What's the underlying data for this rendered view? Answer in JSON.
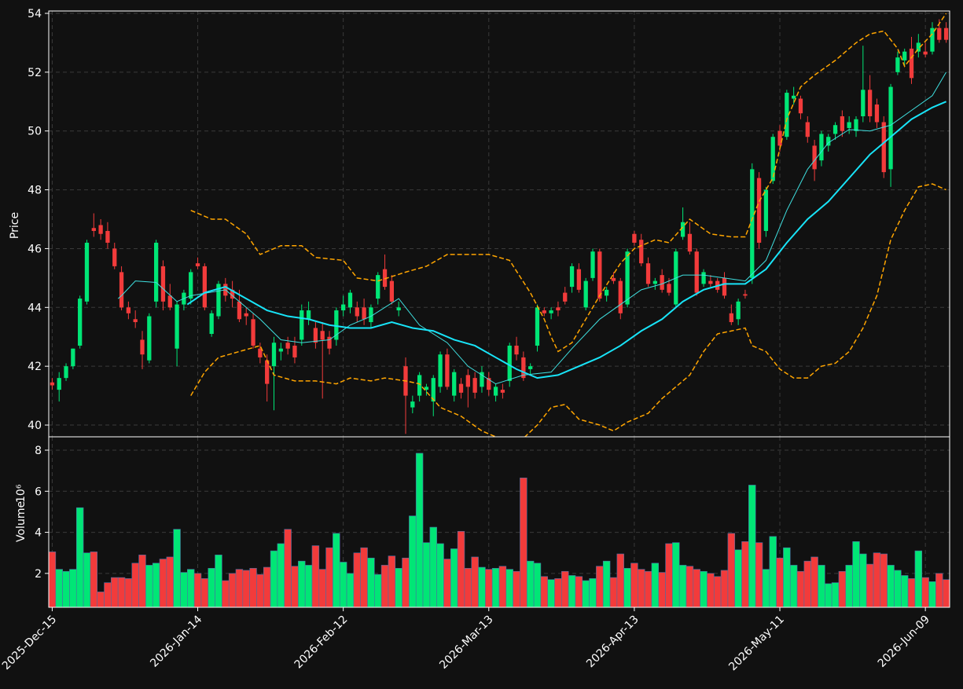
{
  "chart_data": {
    "type": "candlestick",
    "ylabel": "Price",
    "y2label": "Volume",
    "y2label_scale": "10⁶",
    "up_color": "#00e676",
    "down_color": "#f23b3b",
    "grid": true,
    "xlim": [
      -0.5,
      129.5
    ],
    "xticks": [
      {
        "value": 0,
        "label": "2025-Dec-15"
      },
      {
        "value": 21,
        "label": "2026-Jan-14"
      },
      {
        "value": 42,
        "label": "2026-Feb-12"
      },
      {
        "value": 63,
        "label": "2026-Mar-13"
      },
      {
        "value": 84,
        "label": "2026-Apr-13"
      },
      {
        "value": 105,
        "label": "2026-May-11"
      },
      {
        "value": 126,
        "label": "2026-Jun-09"
      }
    ],
    "ylim": [
      39.6,
      54.08
    ],
    "yticks": [
      40,
      42,
      44,
      46,
      48,
      50,
      52,
      54
    ],
    "y2lim": [
      0.35,
      8.65
    ],
    "y2ticks": [
      2,
      4,
      6,
      8
    ],
    "ohlc": [
      [
        41.45,
        41.6,
        41.2,
        41.35
      ],
      [
        41.2,
        41.8,
        40.8,
        41.6
      ],
      [
        41.6,
        42.1,
        41.5,
        42.0
      ],
      [
        42.0,
        42.6,
        41.9,
        42.6
      ],
      [
        42.7,
        44.4,
        42.6,
        44.3
      ],
      [
        44.2,
        46.3,
        44.1,
        46.2
      ],
      [
        46.7,
        47.2,
        46.4,
        46.6
      ],
      [
        46.8,
        47.0,
        46.3,
        46.5
      ],
      [
        46.6,
        46.9,
        46.0,
        46.2
      ],
      [
        46.0,
        46.2,
        45.3,
        45.4
      ],
      [
        45.2,
        45.4,
        43.9,
        44.0
      ],
      [
        44.0,
        44.2,
        43.6,
        43.8
      ],
      [
        43.6,
        43.9,
        43.3,
        43.5
      ],
      [
        42.9,
        43.2,
        41.9,
        42.4
      ],
      [
        42.2,
        43.8,
        42.1,
        43.7
      ],
      [
        44.2,
        46.3,
        44.0,
        46.2
      ],
      [
        45.4,
        45.6,
        43.9,
        44.2
      ],
      [
        44.4,
        44.8,
        43.9,
        44.0
      ],
      [
        42.6,
        44.2,
        42.0,
        44.1
      ],
      [
        44.1,
        44.6,
        43.9,
        44.5
      ],
      [
        44.3,
        45.3,
        44.1,
        45.2
      ],
      [
        45.5,
        45.7,
        45.3,
        45.4
      ],
      [
        45.4,
        45.5,
        43.9,
        44.0
      ],
      [
        43.1,
        43.9,
        43.0,
        43.8
      ],
      [
        43.7,
        44.9,
        43.6,
        44.8
      ],
      [
        44.8,
        45.0,
        44.2,
        44.4
      ],
      [
        44.6,
        44.9,
        44.0,
        44.3
      ],
      [
        44.2,
        44.6,
        43.5,
        43.6
      ],
      [
        43.8,
        44.0,
        43.4,
        43.7
      ],
      [
        43.6,
        43.8,
        42.6,
        42.7
      ],
      [
        42.6,
        42.8,
        42.1,
        42.3
      ],
      [
        42.2,
        42.4,
        40.8,
        41.4
      ],
      [
        42.0,
        43.0,
        40.5,
        42.8
      ],
      [
        42.5,
        42.8,
        42.2,
        42.6
      ],
      [
        42.8,
        43.0,
        42.4,
        42.6
      ],
      [
        42.7,
        43.0,
        42.1,
        42.3
      ],
      [
        42.9,
        44.1,
        42.7,
        43.9
      ],
      [
        43.6,
        44.2,
        43.4,
        43.9
      ],
      [
        43.3,
        43.5,
        42.6,
        42.8
      ],
      [
        43.2,
        43.5,
        40.9,
        42.9
      ],
      [
        43.0,
        43.2,
        42.4,
        42.6
      ],
      [
        42.9,
        44.0,
        42.7,
        43.9
      ],
      [
        43.9,
        44.4,
        43.7,
        44.1
      ],
      [
        44.0,
        44.6,
        43.8,
        44.5
      ],
      [
        44.0,
        44.2,
        43.5,
        43.7
      ],
      [
        44.0,
        44.3,
        43.4,
        43.6
      ],
      [
        43.5,
        44.1,
        43.3,
        44.0
      ],
      [
        44.3,
        45.2,
        44.1,
        45.1
      ],
      [
        45.3,
        45.8,
        44.6,
        44.7
      ],
      [
        44.9,
        45.1,
        44.1,
        44.2
      ],
      [
        43.9,
        44.2,
        43.7,
        44.0
      ],
      [
        42.0,
        42.3,
        39.7,
        41.0
      ],
      [
        40.6,
        41.0,
        40.4,
        40.8
      ],
      [
        41.0,
        41.8,
        40.8,
        41.7
      ],
      [
        41.2,
        41.4,
        41.0,
        41.3
      ],
      [
        40.8,
        41.7,
        40.3,
        41.6
      ],
      [
        41.3,
        42.5,
        41.1,
        42.4
      ],
      [
        42.4,
        42.6,
        41.2,
        41.3
      ],
      [
        41.0,
        41.9,
        40.8,
        41.8
      ],
      [
        41.4,
        41.6,
        40.9,
        41.1
      ],
      [
        41.7,
        41.9,
        40.6,
        41.3
      ],
      [
        41.6,
        41.8,
        40.9,
        41.1
      ],
      [
        41.3,
        42.0,
        41.1,
        41.8
      ],
      [
        41.6,
        41.8,
        41.0,
        41.2
      ],
      [
        41.0,
        41.4,
        40.8,
        41.3
      ],
      [
        41.2,
        41.4,
        40.9,
        41.1
      ],
      [
        41.5,
        42.8,
        41.3,
        42.7
      ],
      [
        42.7,
        43.0,
        42.2,
        42.4
      ],
      [
        42.3,
        42.5,
        41.5,
        41.6
      ],
      [
        41.9,
        42.1,
        41.7,
        42.0
      ],
      [
        42.7,
        44.1,
        42.5,
        44.0
      ],
      [
        43.9,
        44.0,
        43.7,
        43.8
      ],
      [
        43.8,
        44.0,
        43.6,
        43.9
      ],
      [
        44.0,
        44.2,
        43.7,
        43.9
      ],
      [
        44.5,
        44.7,
        44.1,
        44.2
      ],
      [
        44.7,
        45.5,
        44.5,
        45.4
      ],
      [
        45.3,
        45.5,
        44.5,
        44.6
      ],
      [
        44.0,
        45.0,
        43.9,
        44.9
      ],
      [
        45.0,
        46.0,
        44.9,
        45.9
      ],
      [
        45.9,
        46.0,
        44.2,
        44.3
      ],
      [
        44.4,
        44.7,
        44.2,
        44.6
      ],
      [
        45.0,
        45.2,
        44.8,
        44.9
      ],
      [
        44.9,
        45.0,
        43.6,
        43.8
      ],
      [
        44.1,
        46.0,
        44.0,
        45.9
      ],
      [
        46.5,
        46.6,
        46.1,
        46.2
      ],
      [
        46.3,
        46.5,
        45.4,
        45.5
      ],
      [
        45.5,
        45.7,
        44.7,
        44.8
      ],
      [
        44.8,
        45.0,
        44.6,
        44.9
      ],
      [
        45.1,
        45.3,
        44.5,
        44.6
      ],
      [
        44.8,
        45.0,
        44.4,
        44.5
      ],
      [
        44.1,
        46.0,
        44.0,
        45.9
      ],
      [
        46.4,
        47.4,
        46.3,
        46.9
      ],
      [
        46.5,
        46.9,
        45.8,
        45.9
      ],
      [
        45.9,
        46.0,
        44.4,
        44.5
      ],
      [
        44.8,
        45.3,
        44.7,
        45.2
      ],
      [
        44.9,
        45.1,
        44.7,
        44.8
      ],
      [
        44.9,
        45.0,
        44.5,
        44.6
      ],
      [
        45.0,
        45.2,
        44.3,
        44.4
      ],
      [
        43.8,
        44.1,
        43.4,
        43.5
      ],
      [
        43.6,
        44.3,
        43.4,
        44.2
      ],
      [
        44.45,
        44.6,
        44.3,
        44.4
      ],
      [
        45.0,
        48.9,
        44.8,
        48.7
      ],
      [
        48.4,
        48.6,
        46.0,
        46.2
      ],
      [
        46.6,
        48.1,
        46.4,
        48.0
      ],
      [
        48.3,
        49.9,
        48.2,
        49.8
      ],
      [
        50.0,
        50.2,
        49.3,
        49.5
      ],
      [
        49.8,
        51.4,
        49.7,
        51.3
      ],
      [
        51.1,
        51.5,
        50.9,
        51.2
      ],
      [
        51.1,
        51.2,
        50.4,
        50.6
      ],
      [
        50.3,
        50.5,
        49.6,
        49.8
      ],
      [
        49.5,
        49.7,
        48.3,
        48.7
      ],
      [
        49.0,
        50.0,
        48.8,
        49.9
      ],
      [
        49.5,
        49.9,
        49.3,
        49.8
      ],
      [
        49.9,
        50.3,
        49.7,
        50.2
      ],
      [
        50.5,
        50.7,
        49.8,
        50.0
      ],
      [
        50.1,
        50.5,
        49.9,
        50.3
      ],
      [
        50.0,
        50.5,
        49.8,
        50.4
      ],
      [
        50.5,
        52.9,
        50.3,
        51.4
      ],
      [
        51.4,
        51.9,
        50.3,
        50.5
      ],
      [
        50.9,
        51.1,
        50.1,
        50.3
      ],
      [
        50.3,
        50.5,
        48.4,
        48.6
      ],
      [
        48.7,
        51.6,
        48.1,
        51.5
      ],
      [
        52.0,
        52.7,
        51.9,
        52.5
      ],
      [
        52.4,
        52.8,
        52.2,
        52.7
      ],
      [
        52.8,
        53.2,
        51.6,
        51.8
      ],
      [
        52.7,
        53.3,
        52.5,
        53.0
      ],
      [
        52.7,
        53.0,
        52.5,
        52.6
      ],
      [
        52.7,
        53.7,
        52.6,
        53.5
      ],
      [
        53.5,
        53.8,
        53.0,
        53.1
      ],
      [
        53.5,
        53.7,
        53.0,
        53.1
      ]
    ],
    "volume": [
      3.05,
      2.2,
      2.1,
      2.2,
      5.2,
      3.0,
      3.05,
      1.1,
      1.55,
      1.8,
      1.8,
      1.75,
      2.5,
      2.9,
      2.4,
      2.5,
      2.7,
      2.8,
      4.15,
      2.05,
      2.2,
      2.0,
      1.75,
      2.25,
      2.9,
      1.65,
      2.0,
      2.2,
      2.15,
      2.25,
      1.95,
      2.3,
      3.1,
      3.45,
      4.15,
      2.35,
      2.6,
      2.4,
      3.35,
      2.2,
      3.25,
      3.95,
      2.55,
      2.0,
      3.0,
      3.25,
      2.75,
      1.95,
      2.4,
      2.85,
      2.25,
      2.75,
      4.8,
      7.85,
      3.5,
      4.25,
      3.45,
      2.7,
      3.2,
      4.05,
      2.25,
      2.8,
      2.3,
      2.2,
      2.25,
      2.35,
      2.2,
      2.1,
      6.65,
      2.6,
      2.5,
      1.85,
      1.7,
      1.75,
      2.1,
      1.9,
      1.85,
      1.65,
      1.75,
      2.35,
      2.6,
      1.8,
      2.95,
      2.25,
      2.5,
      2.2,
      2.1,
      2.5,
      2.05,
      3.45,
      3.5,
      2.4,
      2.35,
      2.2,
      2.1,
      2.0,
      1.85,
      2.15,
      3.95,
      3.15,
      3.55,
      6.3,
      3.5,
      2.2,
      3.8,
      2.75,
      3.25,
      2.4,
      2.1,
      2.6,
      2.8,
      2.4,
      1.5,
      1.55,
      2.1,
      2.4,
      3.55,
      2.95,
      2.45,
      3.0,
      2.95,
      2.4,
      2.15,
      1.9,
      1.75,
      3.1,
      1.8,
      1.6,
      2.0,
      1.7
    ],
    "overlays": [
      {
        "color": "#3fe0e0",
        "width": 1,
        "dash": false,
        "x": [
          9.5,
          10,
          12,
          15,
          18,
          20,
          25,
          30,
          33,
          36,
          40,
          43,
          46,
          50,
          53,
          57,
          60,
          64,
          68,
          72,
          75,
          79,
          82,
          85,
          88,
          91,
          94,
          97,
          100,
          103,
          106,
          109,
          112,
          115,
          118,
          121,
          124,
          127,
          129
        ],
        "values": [
          44.3,
          44.4,
          44.9,
          44.85,
          44.2,
          44.4,
          44.6,
          43.6,
          42.9,
          42.8,
          42.9,
          43.4,
          43.7,
          44.3,
          43.4,
          42.8,
          42.0,
          41.4,
          41.7,
          41.8,
          42.6,
          43.6,
          44.1,
          44.6,
          44.8,
          45.1,
          45.1,
          45.0,
          44.9,
          45.6,
          47.3,
          48.7,
          49.6,
          50.05,
          50.0,
          50.2,
          50.7,
          51.2,
          52.0
        ]
      },
      {
        "color": "#18e4f8",
        "width": 2,
        "dash": false,
        "x": [
          19.5,
          22,
          25,
          28,
          31,
          34,
          37,
          40,
          43,
          46,
          49,
          52,
          55,
          58,
          61,
          64,
          67,
          70,
          73,
          76,
          79,
          82,
          85,
          88,
          91,
          94,
          97,
          100,
          103,
          106,
          109,
          112,
          115,
          118,
          121,
          124,
          127,
          129
        ],
        "values": [
          44.1,
          44.5,
          44.7,
          44.3,
          43.9,
          43.7,
          43.6,
          43.4,
          43.3,
          43.3,
          43.5,
          43.3,
          43.2,
          42.9,
          42.7,
          42.3,
          41.9,
          41.6,
          41.7,
          42.0,
          42.3,
          42.7,
          43.2,
          43.6,
          44.2,
          44.6,
          44.8,
          44.8,
          45.3,
          46.2,
          47.0,
          47.6,
          48.4,
          49.2,
          49.8,
          50.4,
          50.8,
          51.0
        ]
      },
      {
        "color": "#ffa500",
        "width": 1.5,
        "dash": true,
        "x": [
          20,
          23,
          25,
          28,
          30,
          33,
          36,
          38,
          42,
          44,
          47,
          51,
          54,
          57,
          60,
          63,
          66,
          69,
          71,
          72,
          73,
          75,
          77,
          79,
          82,
          84,
          87,
          89,
          92,
          95,
          98,
          100,
          102,
          104,
          106,
          108,
          110,
          113,
          116,
          118,
          120,
          122,
          123,
          125,
          127,
          129
        ],
        "values": [
          47.3,
          47.0,
          47.0,
          46.5,
          45.8,
          46.1,
          46.1,
          45.7,
          45.6,
          45.0,
          44.9,
          45.2,
          45.4,
          45.8,
          45.8,
          45.8,
          45.6,
          44.5,
          43.6,
          43.0,
          42.5,
          42.8,
          43.6,
          44.4,
          45.5,
          46.0,
          46.3,
          46.2,
          47.0,
          46.5,
          46.4,
          46.4,
          47.6,
          48.4,
          50.4,
          51.5,
          51.9,
          52.4,
          53.0,
          53.3,
          53.4,
          52.8,
          52.2,
          52.8,
          53.3,
          54.0
        ]
      },
      {
        "color": "#ffa500",
        "width": 1.5,
        "dash": true,
        "x": [
          20,
          22,
          24,
          27,
          30,
          32,
          35,
          38,
          41,
          43,
          46,
          48,
          51,
          53,
          56,
          59,
          62,
          65,
          68,
          70,
          72,
          74,
          76,
          79,
          81,
          83,
          86,
          88,
          90,
          92,
          94,
          96,
          98,
          100,
          101,
          103,
          105,
          107,
          109,
          111,
          113,
          115,
          117,
          119,
          121,
          123,
          125,
          127,
          129
        ],
        "values": [
          41.0,
          41.8,
          42.3,
          42.5,
          42.7,
          41.7,
          41.5,
          41.5,
          41.4,
          41.6,
          41.5,
          41.6,
          41.5,
          41.4,
          40.6,
          40.3,
          39.8,
          39.5,
          39.55,
          40.0,
          40.6,
          40.7,
          40.2,
          40.0,
          39.8,
          40.1,
          40.4,
          40.9,
          41.3,
          41.7,
          42.5,
          43.1,
          43.2,
          43.3,
          42.7,
          42.5,
          41.9,
          41.6,
          41.6,
          42.0,
          42.1,
          42.5,
          43.3,
          44.4,
          46.3,
          47.3,
          48.1,
          48.2,
          48.0
        ]
      }
    ]
  }
}
